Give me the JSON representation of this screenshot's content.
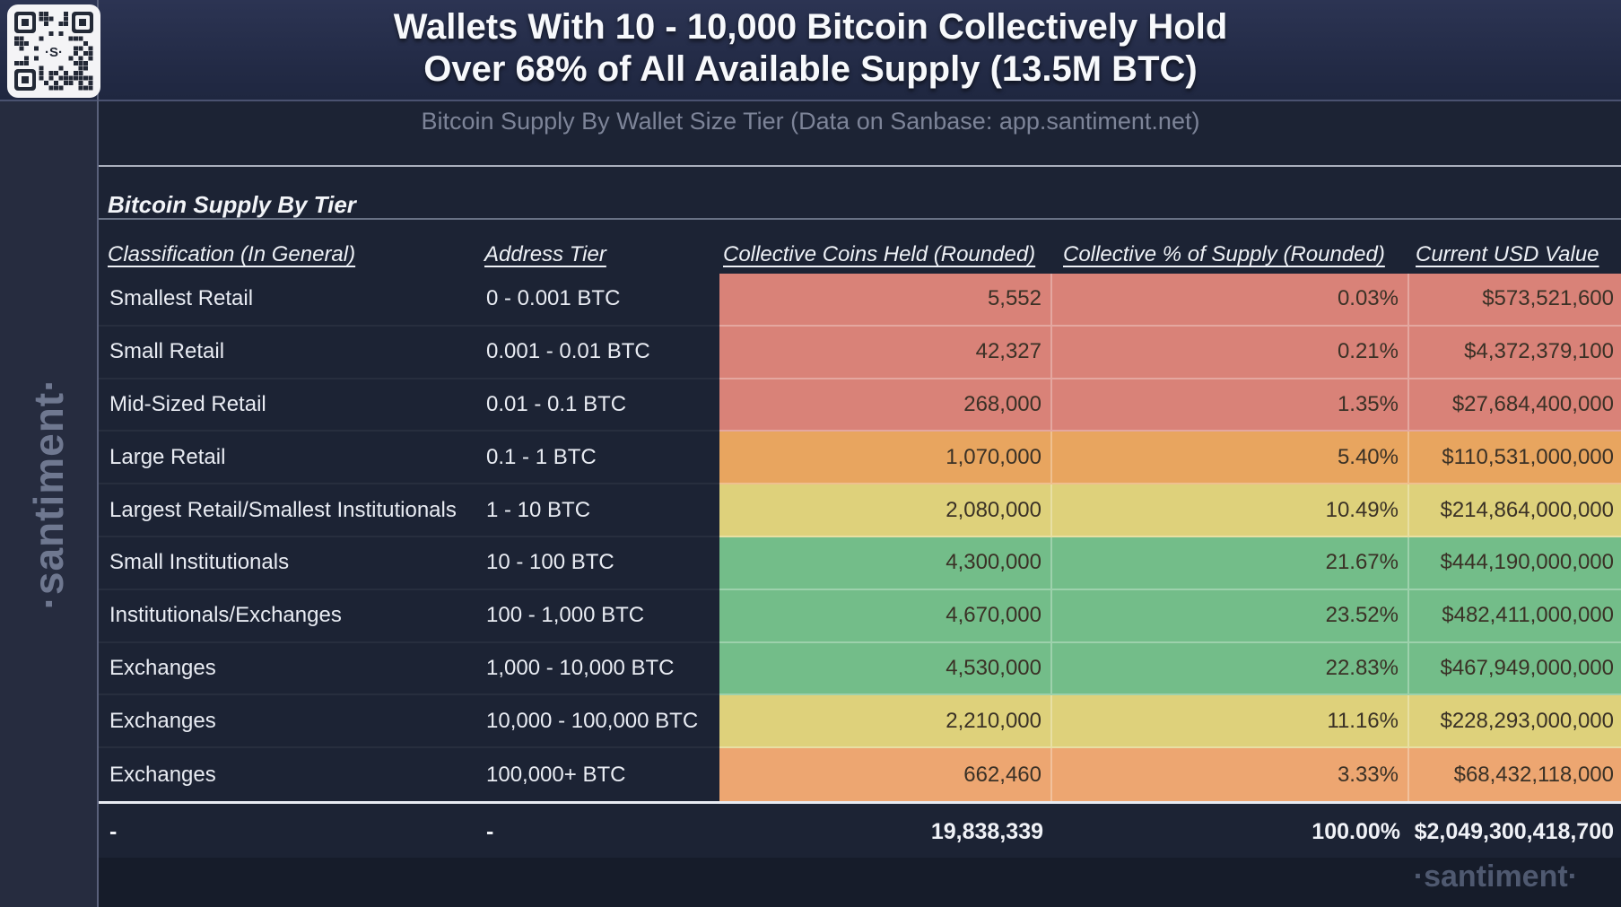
{
  "header": {
    "title_line1": "Wallets With 10 - 10,000 Bitcoin Collectively Hold",
    "title_line2": "Over 68% of All Available Supply (13.5M BTC)",
    "subtitle": "Bitcoin Supply By Wallet Size Tier (Data on Sanbase: app.santiment.net)",
    "qr_logo": "·S·"
  },
  "sidebar": {
    "watermark": "·santiment·"
  },
  "footer": {
    "watermark": "·santiment·"
  },
  "colors": {
    "tier_red": "#d98278",
    "tier_orange": "#e8a55f",
    "tier_yellow": "#ded17b",
    "tier_green": "#73bd89",
    "tier_peach": "#eda671",
    "background": "#1c2334",
    "banner": "#222a45"
  },
  "table": {
    "title": "Bitcoin Supply By Tier",
    "columns": [
      "Classification (In General)",
      "Address Tier",
      "Collective Coins Held (Rounded)",
      "Collective % of Supply (Rounded)",
      "Current USD Value"
    ],
    "rows": [
      {
        "classification": "Smallest Retail",
        "tier": "0 - 0.001 BTC",
        "coins": "5,552",
        "pct": "0.03%",
        "usd": "$573,521,600",
        "color": "tier_red"
      },
      {
        "classification": "Small Retail",
        "tier": "0.001 - 0.01 BTC",
        "coins": "42,327",
        "pct": "0.21%",
        "usd": "$4,372,379,100",
        "color": "tier_red"
      },
      {
        "classification": "Mid-Sized Retail",
        "tier": "0.01 - 0.1 BTC",
        "coins": "268,000",
        "pct": "1.35%",
        "usd": "$27,684,400,000",
        "color": "tier_red"
      },
      {
        "classification": "Large Retail",
        "tier": "0.1 - 1 BTC",
        "coins": "1,070,000",
        "pct": "5.40%",
        "usd": "$110,531,000,000",
        "color": "tier_orange"
      },
      {
        "classification": "Largest Retail/Smallest Institutionals",
        "tier": "1 - 10 BTC",
        "coins": "2,080,000",
        "pct": "10.49%",
        "usd": "$214,864,000,000",
        "color": "tier_yellow"
      },
      {
        "classification": "Small Institutionals",
        "tier": "10 - 100 BTC",
        "coins": "4,300,000",
        "pct": "21.67%",
        "usd": "$444,190,000,000",
        "color": "tier_green"
      },
      {
        "classification": "Institutionals/Exchanges",
        "tier": "100 - 1,000 BTC",
        "coins": "4,670,000",
        "pct": "23.52%",
        "usd": "$482,411,000,000",
        "color": "tier_green"
      },
      {
        "classification": "Exchanges",
        "tier": "1,000 - 10,000 BTC",
        "coins": "4,530,000",
        "pct": "22.83%",
        "usd": "$467,949,000,000",
        "color": "tier_green"
      },
      {
        "classification": "Exchanges",
        "tier": "10,000 - 100,000 BTC",
        "coins": "2,210,000",
        "pct": "11.16%",
        "usd": "$228,293,000,000",
        "color": "tier_yellow"
      },
      {
        "classification": "Exchanges",
        "tier": "100,000+ BTC",
        "coins": "662,460",
        "pct": "3.33%",
        "usd": "$68,432,118,000",
        "color": "tier_peach"
      }
    ],
    "totals": {
      "classification": "-",
      "tier": "-",
      "coins": "19,838,339",
      "pct": "100.00%",
      "usd": "$2,049,300,418,700"
    }
  },
  "chart_data": {
    "type": "table",
    "title": "Bitcoin Supply By Tier",
    "columns": [
      "Classification (In General)",
      "Address Tier",
      "Collective Coins Held (Rounded)",
      "Collective % of Supply (Rounded)",
      "Current USD Value"
    ],
    "rows": [
      [
        "Smallest Retail",
        "0 - 0.001 BTC",
        5552,
        0.03,
        573521600
      ],
      [
        "Small Retail",
        "0.001 - 0.01 BTC",
        42327,
        0.21,
        4372379100
      ],
      [
        "Mid-Sized Retail",
        "0.01 - 0.1 BTC",
        268000,
        1.35,
        27684400000
      ],
      [
        "Large Retail",
        "0.1 - 1 BTC",
        1070000,
        5.4,
        110531000000
      ],
      [
        "Largest Retail/Smallest Institutionals",
        "1 - 10 BTC",
        2080000,
        10.49,
        214864000000
      ],
      [
        "Small Institutionals",
        "10 - 100 BTC",
        4300000,
        21.67,
        444190000000
      ],
      [
        "Institutionals/Exchanges",
        "100 - 1,000 BTC",
        4670000,
        23.52,
        482411000000
      ],
      [
        "Exchanges",
        "1,000 - 10,000 BTC",
        4530000,
        22.83,
        467949000000
      ],
      [
        "Exchanges",
        "10,000 - 100,000 BTC",
        2210000,
        11.16,
        228293000000
      ],
      [
        "Exchanges",
        "100,000+ BTC",
        662460,
        3.33,
        68432118000
      ]
    ],
    "totals": [
      "-",
      "-",
      19838339,
      100.0,
      2049300418700
    ],
    "color_scale": "red (low % of supply) to green (high % of supply) applied to last three columns"
  }
}
